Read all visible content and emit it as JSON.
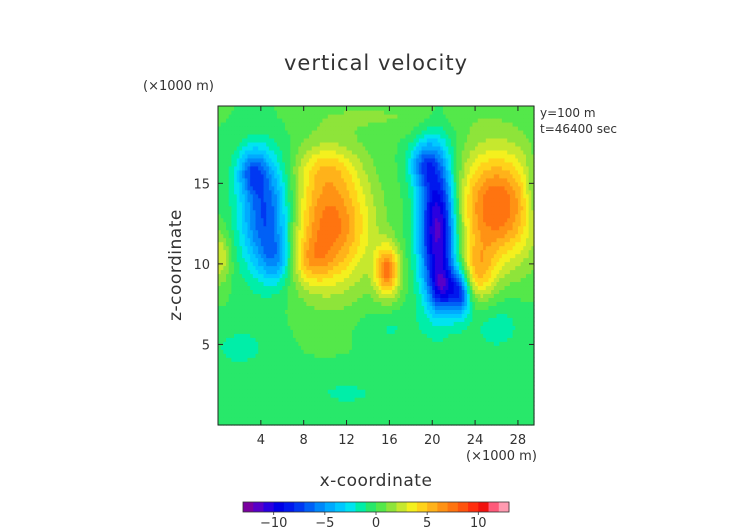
{
  "chart_data": {
    "type": "heatmap",
    "title": "vertical velocity",
    "xlabel": "x-coordinate",
    "ylabel": "z-coordinate",
    "x_unit": "(×1000 m)",
    "y_unit": "(×1000 m)",
    "annotations": [
      "y=100 m",
      "t=46400 sec"
    ],
    "xlim": [
      0,
      29.5
    ],
    "ylim": [
      0,
      19.8
    ],
    "x_ticks": [
      4,
      8,
      12,
      16,
      20,
      24,
      28
    ],
    "x_tick_labels": [
      "4",
      "8",
      "12",
      "16",
      "20",
      "24",
      "28"
    ],
    "y_ticks": [
      5,
      10,
      15
    ],
    "y_tick_labels": [
      "5",
      "10",
      "15"
    ],
    "colorbar": {
      "min": -13,
      "max": 13,
      "levels": [
        -13,
        -12,
        -11,
        -10,
        -9,
        -8,
        -7,
        -6,
        -5,
        -4,
        -3,
        -2,
        -1,
        0,
        1,
        2,
        3,
        4,
        5,
        6,
        7,
        8,
        9,
        10,
        11,
        12,
        13
      ],
      "colors": [
        "#7a00a0",
        "#5800c8",
        "#2a00e0",
        "#0000e6",
        "#0018ee",
        "#0038f2",
        "#0060f6",
        "#0088fa",
        "#00aaff",
        "#00c8ff",
        "#00e4f0",
        "#00eea8",
        "#28e86a",
        "#54e84a",
        "#8ee43a",
        "#c6e82e",
        "#f4f01e",
        "#ffd21a",
        "#ffb21a",
        "#ff9214",
        "#ff7410",
        "#ff540e",
        "#ff2e0e",
        "#f0100e",
        "#ff5a7a",
        "#ff9ab0"
      ],
      "tick_values": [
        -10,
        -5,
        0,
        5,
        10
      ],
      "tick_labels": [
        "−10",
        "−5",
        "0",
        "5",
        "10"
      ]
    },
    "features": [
      {
        "name": "downdraft-left",
        "x": 4.5,
        "z": 13.0,
        "value": -7.5,
        "sx": 1.7,
        "sz": 2.5
      },
      {
        "name": "downdraft-left-upper",
        "x": 3.2,
        "z": 15.8,
        "value": -4.5,
        "sx": 1.0,
        "sz": 1.0
      },
      {
        "name": "downdraft-left-lower",
        "x": 5.5,
        "z": 10.3,
        "value": -3.0,
        "sx": 1.0,
        "sz": 1.0
      },
      {
        "name": "updraft-mid",
        "x": 10.5,
        "z": 12.5,
        "value": 7.5,
        "sx": 2.6,
        "sz": 2.7
      },
      {
        "name": "updraft-mid-lower-left",
        "x": 8.6,
        "z": 10.2,
        "value": 2.5,
        "sx": 1.3,
        "sz": 1.0
      },
      {
        "name": "updraft-mid-upper",
        "x": 10.0,
        "z": 16.0,
        "value": 2.0,
        "sx": 2.0,
        "sz": 1.0
      },
      {
        "name": "updraft-small",
        "x": 15.8,
        "z": 9.6,
        "value": 7.0,
        "sx": 0.8,
        "sz": 1.1
      },
      {
        "name": "downdraft-core",
        "x": 20.5,
        "z": 12.3,
        "value": -12.0,
        "sx": 1.2,
        "sz": 3.1
      },
      {
        "name": "downdraft-core-bottom",
        "x": 21.0,
        "z": 8.6,
        "value": -5.5,
        "sx": 0.8,
        "sz": 1.0
      },
      {
        "name": "downdraft-sub",
        "x": 22.6,
        "z": 8.2,
        "value": -7.0,
        "sx": 0.7,
        "sz": 1.0
      },
      {
        "name": "downdraft-upper-right",
        "x": 19.2,
        "z": 16.2,
        "value": -4.5,
        "sx": 1.0,
        "sz": 1.0
      },
      {
        "name": "updraft-right",
        "x": 26.0,
        "z": 13.6,
        "value": 8.0,
        "sx": 2.6,
        "sz": 2.5
      },
      {
        "name": "updraft-right-lower",
        "x": 24.3,
        "z": 9.5,
        "value": 4.0,
        "sx": 1.1,
        "sz": 1.3
      },
      {
        "name": "updraft-left-edge",
        "x": 0.2,
        "z": 10.5,
        "value": 3.0,
        "sx": 0.7,
        "sz": 1.2
      },
      {
        "name": "weak-down-right-low",
        "x": 26.0,
        "z": 6.2,
        "value": -1.5,
        "sx": 2.0,
        "sz": 1.3
      },
      {
        "name": "weak-down-left-low",
        "x": 2.0,
        "z": 4.8,
        "value": -1.3,
        "sx": 2.3,
        "sz": 1.1
      },
      {
        "name": "weak-down-mid-low",
        "x": 16.0,
        "z": 6.0,
        "value": -1.1,
        "sx": 2.0,
        "sz": 0.8
      },
      {
        "name": "weak-down-bottom",
        "x": 12.0,
        "z": 2.0,
        "value": -1.1,
        "sx": 4.0,
        "sz": 1.0
      },
      {
        "name": "weak-down-right-edge",
        "x": 29.5,
        "z": 14.5,
        "value": -2.0,
        "sx": 0.6,
        "sz": 1.4
      },
      {
        "name": "weak-up-top",
        "x": 16.0,
        "z": 19.2,
        "value": 1.0,
        "sx": 6.0,
        "sz": 0.8
      }
    ]
  }
}
